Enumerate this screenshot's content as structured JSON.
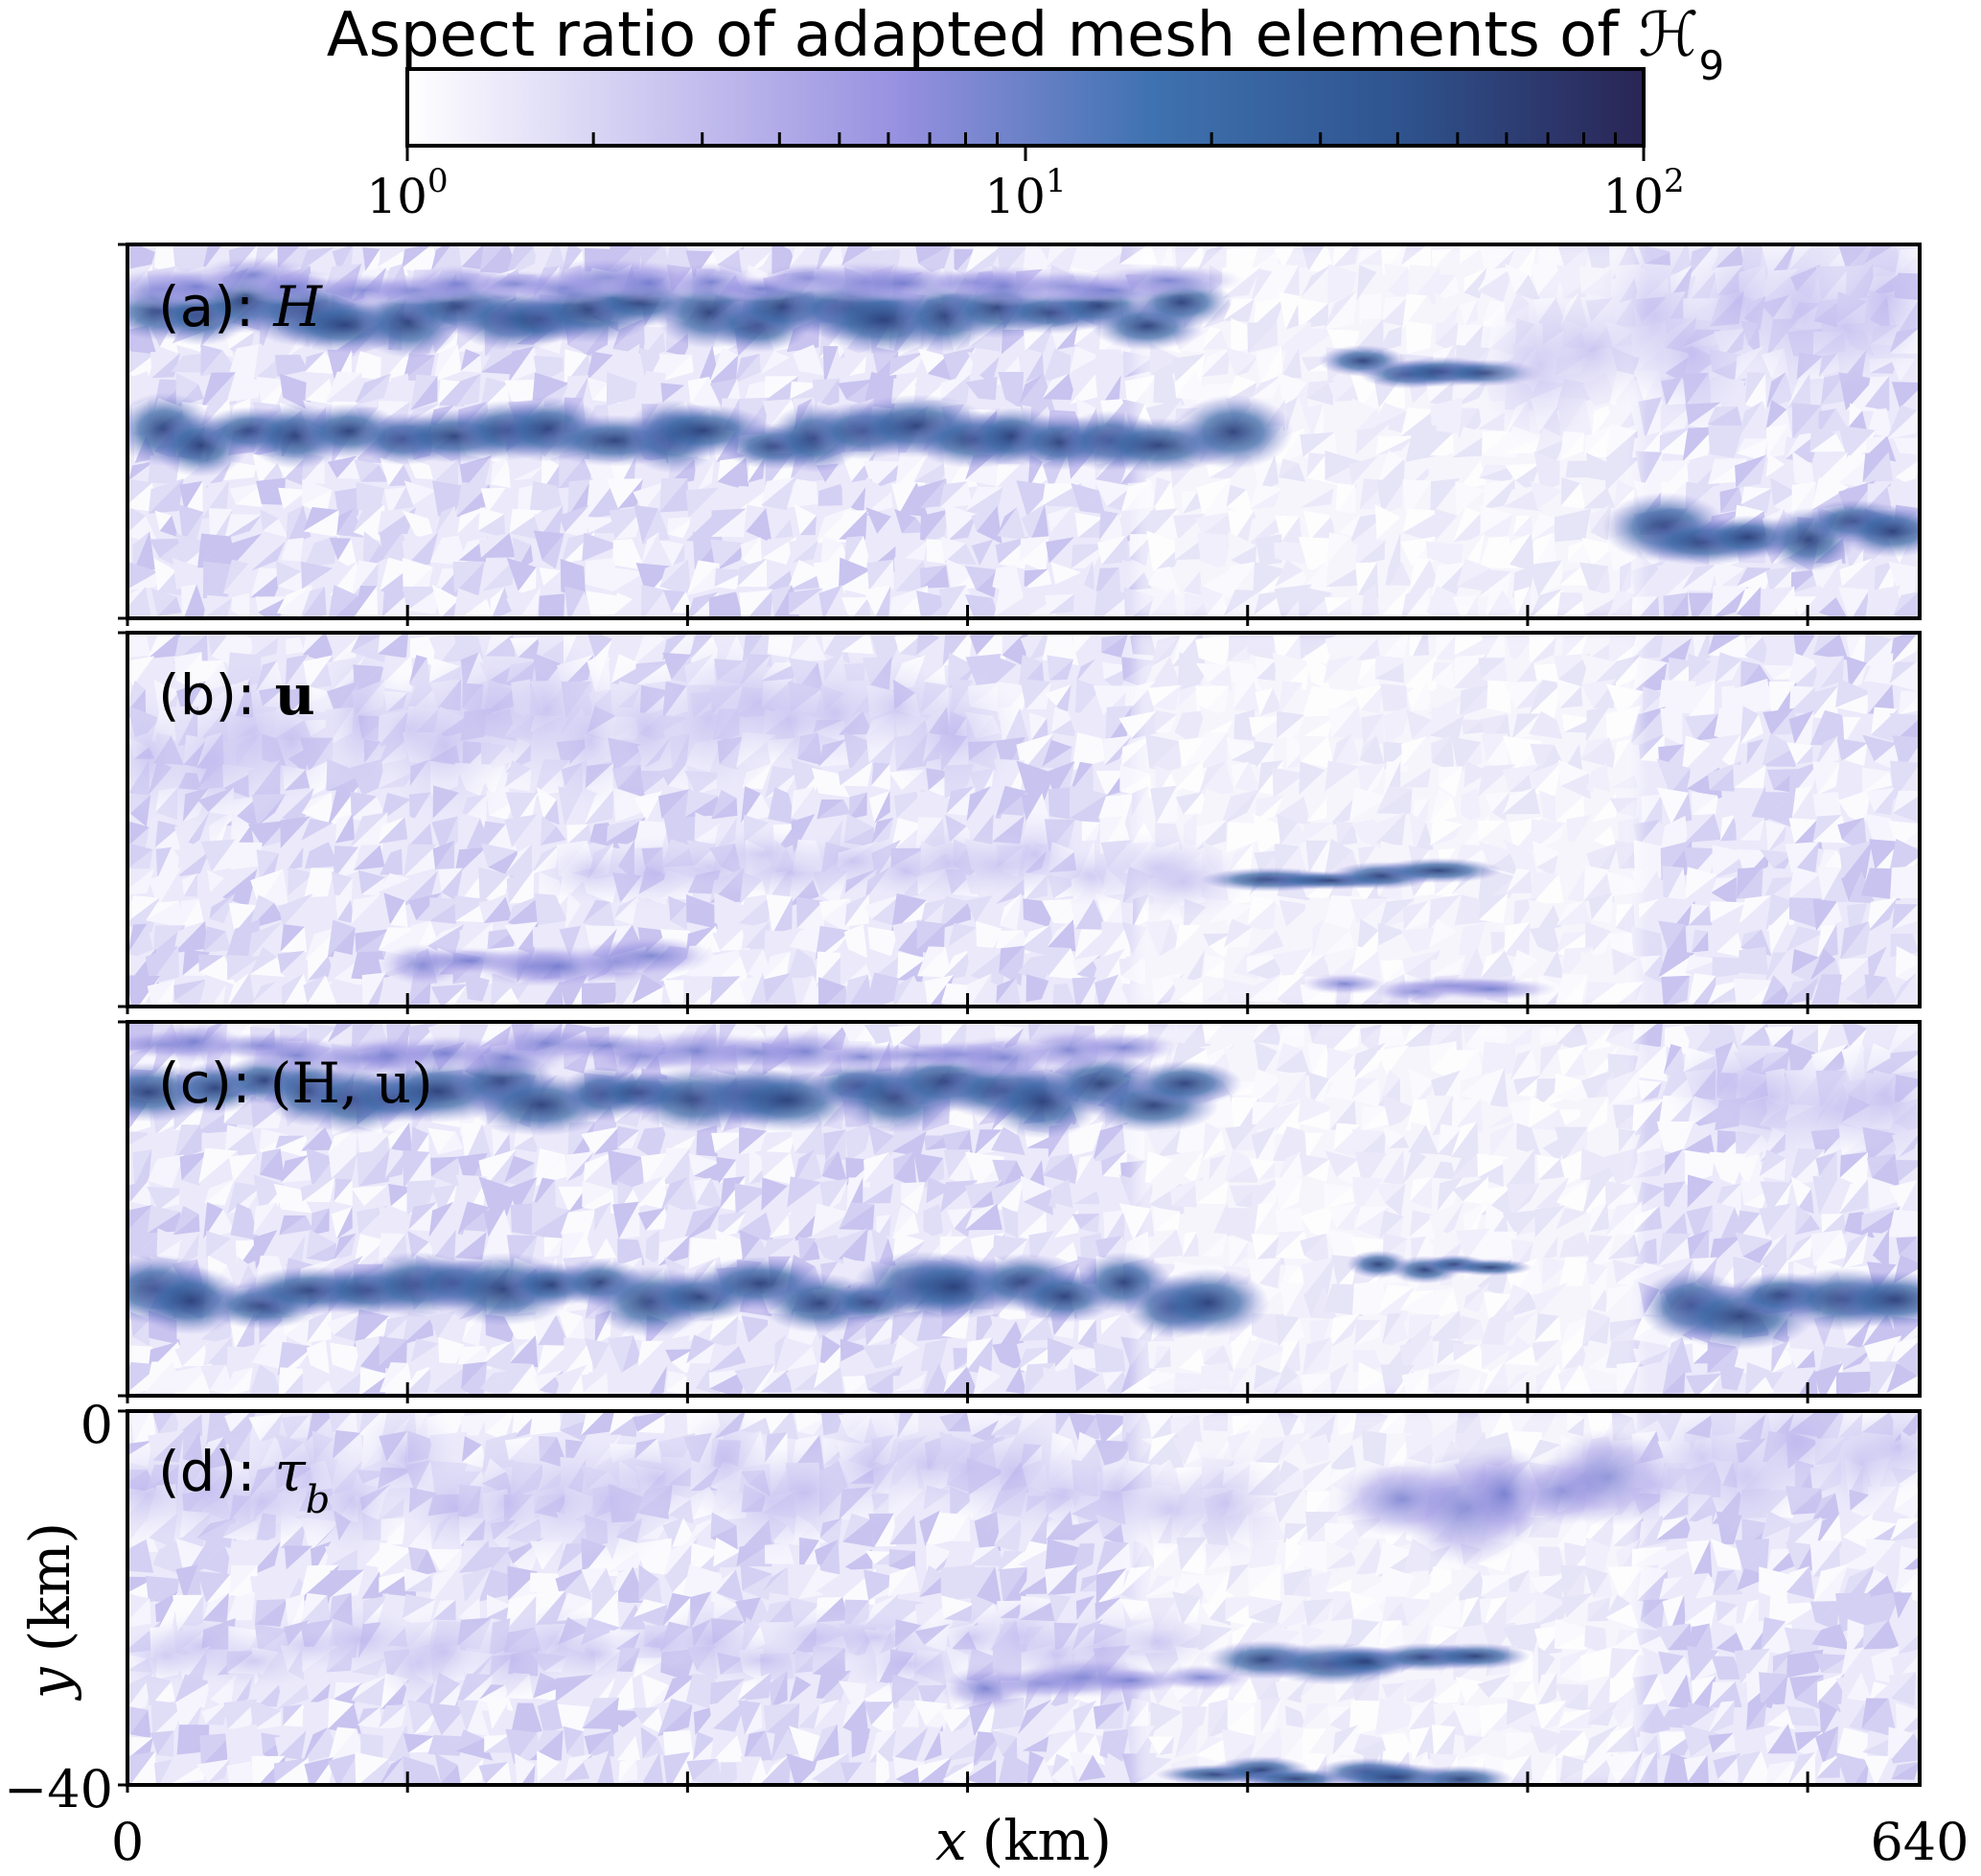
{
  "chart_data": {
    "type": "heatmap",
    "title": "Aspect ratio of adapted mesh elements of ℋ",
    "title_subscript": "9",
    "colorbar": {
      "scale": "log",
      "range": [
        1,
        100
      ],
      "tick_labels": [
        {
          "base": "10",
          "exp": "0"
        },
        {
          "base": "10",
          "exp": "1"
        },
        {
          "base": "10",
          "exp": "2"
        }
      ],
      "colors": [
        "#ffffff",
        "#ccc7f0",
        "#9690e0",
        "#3f72b0",
        "#2f548f",
        "#2a2555"
      ]
    },
    "xlabel_var": "x",
    "xlabel_unit": "(km)",
    "ylabel_var": "y",
    "ylabel_unit": "(km)",
    "xlim": [
      0,
      640
    ],
    "ylim": [
      -40,
      0
    ],
    "x_tick_labels": [
      "0",
      "640"
    ],
    "y_tick_labels": [
      "0",
      "−40"
    ],
    "panels": [
      {
        "label": "(a):",
        "symbol": "H",
        "symbol_style": "italic"
      },
      {
        "label": "(b):",
        "symbol": "u",
        "symbol_style": "bold"
      },
      {
        "label": "(c):",
        "symbol": "(H, u)",
        "symbol_style": "mixed"
      },
      {
        "label": "(d):",
        "symbol": "τ",
        "symbol_sub": "b",
        "symbol_style": "italic"
      }
    ]
  }
}
